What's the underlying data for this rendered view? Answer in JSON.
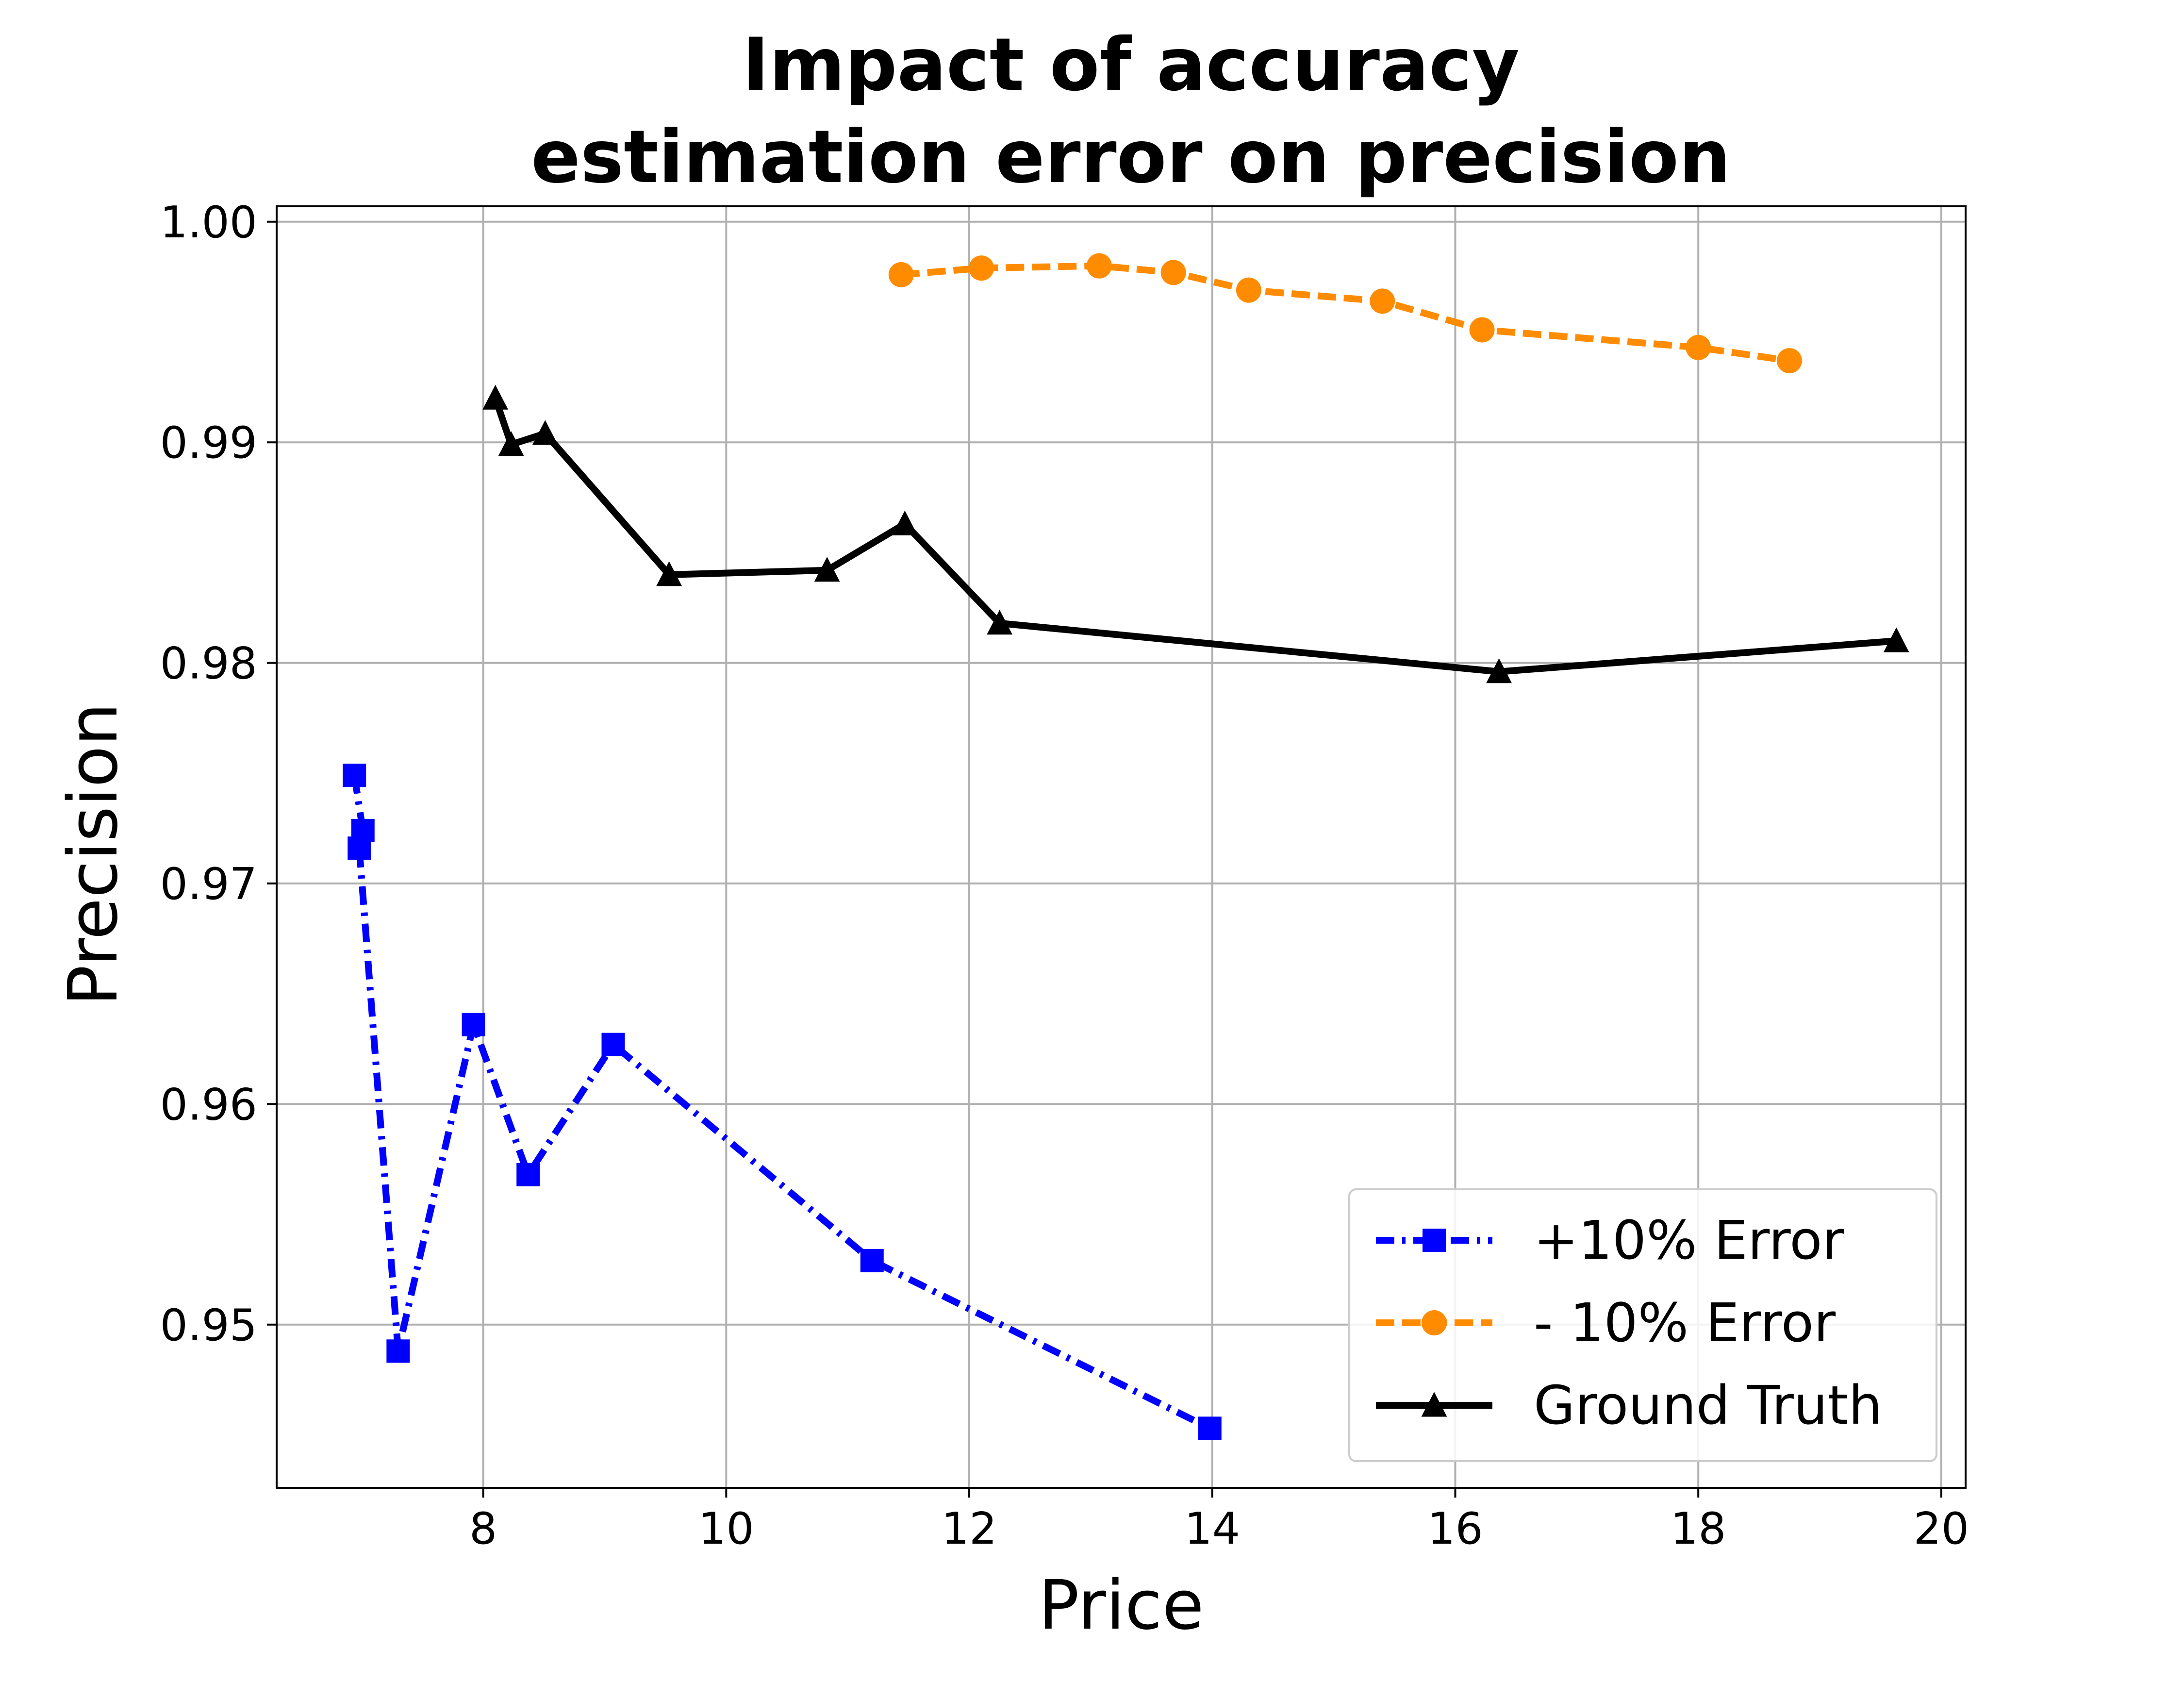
{
  "chart_data": {
    "type": "line",
    "title_lines": [
      "Impact of accuracy",
      "estimation error on precision"
    ],
    "xlabel": "Price",
    "ylabel": "Precision",
    "xlim": [
      6.3,
      20.2
    ],
    "ylim": [
      0.9426,
      1.0007
    ],
    "x_ticks": [
      8,
      10,
      12,
      14,
      16,
      18,
      20
    ],
    "x_tick_labels": [
      "8",
      "10",
      "12",
      "14",
      "16",
      "18",
      "20"
    ],
    "y_ticks": [
      0.95,
      0.96,
      0.97,
      0.98,
      0.99,
      1.0
    ],
    "y_tick_labels": [
      "0.95",
      "0.96",
      "0.97",
      "0.98",
      "0.99",
      "1.00"
    ],
    "grid": true,
    "legend_position": "lower right",
    "series": [
      {
        "name": "+10% Error",
        "color": "#0000ff",
        "line_style": "dashdot",
        "marker": "square",
        "x": [
          6.94,
          7.01,
          6.98,
          7.3,
          7.92,
          8.37,
          9.07,
          11.2,
          13.98
        ],
        "y": [
          0.9749,
          0.9724,
          0.9716,
          0.9488,
          0.9636,
          0.9568,
          0.9627,
          0.9529,
          0.9453
        ]
      },
      {
        "name": "- 10% Error",
        "color": "#ff8c00",
        "line_style": "dashed",
        "marker": "circle",
        "x": [
          11.44,
          12.1,
          13.07,
          13.68,
          14.3,
          15.4,
          16.22,
          18.0,
          18.75
        ],
        "y": [
          0.9976,
          0.9979,
          0.998,
          0.9977,
          0.9969,
          0.9964,
          0.9951,
          0.9943,
          0.9937
        ]
      },
      {
        "name": "Ground Truth",
        "color": "#000000",
        "line_style": "solid",
        "marker": "triangle",
        "x": [
          8.1,
          8.23,
          8.51,
          9.53,
          10.83,
          11.47,
          12.25,
          16.36,
          19.63
        ],
        "y": [
          0.992,
          0.9899,
          0.9904,
          0.984,
          0.9842,
          0.9863,
          0.9818,
          0.9796,
          0.981
        ]
      }
    ]
  }
}
